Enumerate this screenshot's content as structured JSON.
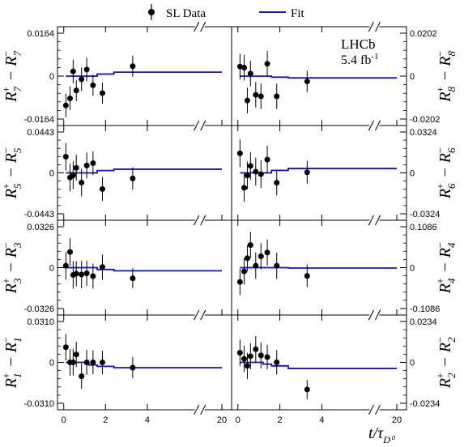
{
  "chart_data": {
    "type": "scatter",
    "legend": {
      "placement": "top",
      "entries": [
        {
          "label": "SL Data",
          "marker": "point-with-errorbar"
        },
        {
          "label": "Fit",
          "marker": "line"
        }
      ]
    },
    "experiment": {
      "name": "LHCb",
      "luminosity": "5.4 fb",
      "luminosity_exp": "-1"
    },
    "xlabel": {
      "main": "t/τ",
      "sub": "D⁰"
    },
    "x_ticks": [
      "0",
      "2",
      "4",
      "20"
    ],
    "x_axis_break": true,
    "x_visible_range": [
      -0.3,
      6.2
    ],
    "colors": {
      "data": "#000000",
      "fit": "#1010dd"
    },
    "panels": [
      {
        "id": "7",
        "column": "left",
        "row": 0,
        "ylabel_main": "R",
        "sup": "+",
        "sub": "7",
        "ylim": [
          -0.0164,
          0.0164
        ],
        "yticks": [
          "0.0164",
          "0",
          "-0.0164"
        ],
        "x": [
          0.1,
          0.3,
          0.45,
          0.6,
          0.85,
          1.1,
          1.4,
          1.85,
          3.3
        ],
        "y": [
          -0.0112,
          -0.0085,
          0.0018,
          -0.0055,
          -0.0012,
          0.0025,
          -0.0035,
          -0.0065,
          0.0038
        ],
        "yerr": [
          0.0045,
          0.0045,
          0.0045,
          0.004,
          0.0045,
          0.0045,
          0.004,
          0.004,
          0.004
        ],
        "fit_x": [
          0.1,
          1.2,
          1.6,
          2.4,
          6.0
        ],
        "fit_y": [
          0.0,
          0.0,
          0.0008,
          0.0015,
          0.0015
        ]
      },
      {
        "id": "8",
        "column": "right",
        "row": 0,
        "ylabel_main": "R",
        "sup": "+",
        "sub": "8",
        "ylim": [
          -0.0202,
          0.0202
        ],
        "yticks": [
          "0.0202",
          "0",
          "-0.0202"
        ],
        "x": [
          0.1,
          0.3,
          0.45,
          0.6,
          0.85,
          1.1,
          1.4,
          1.85,
          3.3
        ],
        "y": [
          0.0045,
          0.004,
          -0.0115,
          0.0012,
          -0.0088,
          -0.0095,
          0.0058,
          -0.0095,
          -0.0025
        ],
        "yerr": [
          0.006,
          0.006,
          0.006,
          0.006,
          0.006,
          0.006,
          0.006,
          0.006,
          0.005
        ],
        "fit_x": [
          0.1,
          1.2,
          1.6,
          2.4,
          6.0
        ],
        "fit_y": [
          0.0,
          0.0,
          -0.0005,
          -0.0008,
          -0.0008
        ]
      },
      {
        "id": "5",
        "column": "left",
        "row": 1,
        "ylabel_main": "R",
        "sup": "+",
        "sub": "5",
        "ylim": [
          -0.0443,
          0.0443
        ],
        "yticks": [
          "0.0443",
          "0",
          "-0.0443"
        ],
        "x": [
          0.1,
          0.3,
          0.45,
          0.6,
          0.85,
          1.1,
          1.4,
          1.85,
          3.3
        ],
        "y": [
          0.0175,
          -0.005,
          -0.0025,
          0.0055,
          -0.0105,
          0.008,
          0.0105,
          -0.0175,
          -0.006
        ],
        "yerr": [
          0.015,
          0.015,
          0.015,
          0.014,
          0.015,
          0.014,
          0.013,
          0.013,
          0.012
        ],
        "fit_x": [
          0.1,
          1.2,
          1.6,
          2.4,
          6.0
        ],
        "fit_y": [
          0.0,
          0.0,
          0.0025,
          0.004,
          0.004
        ]
      },
      {
        "id": "6",
        "column": "right",
        "row": 1,
        "ylabel_main": "R",
        "sup": "+",
        "sub": "6",
        "ylim": [
          -0.0324,
          0.0324
        ],
        "yticks": [
          "0.0324",
          "0",
          "-0.0324"
        ],
        "x": [
          0.1,
          0.3,
          0.45,
          0.6,
          0.85,
          1.1,
          1.4,
          1.85,
          3.3
        ],
        "y": [
          0.0155,
          -0.0118,
          -0.002,
          0.0055,
          0.001,
          -0.001,
          0.0105,
          -0.0078,
          0.0005
        ],
        "yerr": [
          0.011,
          0.011,
          0.011,
          0.011,
          0.011,
          0.011,
          0.011,
          0.01,
          0.009
        ],
        "fit_x": [
          0.1,
          1.2,
          1.6,
          2.4,
          6.0
        ],
        "fit_y": [
          0.0,
          0.0,
          0.002,
          0.0035,
          0.0035
        ]
      },
      {
        "id": "3",
        "column": "left",
        "row": 2,
        "ylabel_main": "R",
        "sup": "+",
        "sub": "3",
        "ylim": [
          -0.0326,
          0.0326
        ],
        "yticks": [
          "0.0326",
          "0",
          "-0.0326"
        ],
        "x": [
          0.1,
          0.3,
          0.45,
          0.6,
          0.85,
          1.1,
          1.4,
          1.85,
          3.3
        ],
        "y": [
          0.0015,
          0.0125,
          -0.0058,
          -0.0048,
          -0.0055,
          -0.0045,
          -0.0068,
          0.0005,
          -0.0085
        ],
        "yerr": [
          0.011,
          0.011,
          0.011,
          0.01,
          0.011,
          0.01,
          0.01,
          0.01,
          0.008
        ],
        "fit_x": [
          0.1,
          1.2,
          1.6,
          2.4,
          6.0
        ],
        "fit_y": [
          0.0,
          0.0,
          -0.0015,
          -0.0025,
          -0.0025
        ]
      },
      {
        "id": "4",
        "column": "right",
        "row": 2,
        "ylabel_main": "R",
        "sup": "+",
        "sub": "4",
        "ylim": [
          -0.1086,
          0.1086
        ],
        "yticks": [
          "0.1086",
          "0",
          "-0.1086"
        ],
        "x": [
          0.1,
          0.3,
          0.45,
          0.6,
          0.85,
          1.1,
          1.4,
          1.85,
          3.3
        ],
        "y": [
          -0.038,
          -0.01,
          0.025,
          0.06,
          0.005,
          0.03,
          0.04,
          0.005,
          -0.022
        ],
        "yerr": [
          0.035,
          0.035,
          0.035,
          0.035,
          0.035,
          0.035,
          0.035,
          0.035,
          0.03
        ],
        "fit_x": [
          0.1,
          1.2,
          1.6,
          2.4,
          6.0
        ],
        "fit_y": [
          0.0,
          0.0,
          0.0,
          -0.001,
          -0.001
        ]
      },
      {
        "id": "1",
        "column": "left",
        "row": 3,
        "ylabel_main": "R",
        "sup": "+",
        "sub": "1",
        "ylim": [
          -0.031,
          0.031
        ],
        "yticks": [
          "0.0310",
          "0",
          "-0.0310"
        ],
        "x": [
          0.1,
          0.3,
          0.45,
          0.6,
          0.85,
          1.1,
          1.4,
          1.85,
          3.3
        ],
        "y": [
          0.0115,
          0.0,
          0.0,
          0.006,
          -0.0105,
          0.0,
          0.0,
          0.0,
          -0.004
        ],
        "yerr": [
          0.01,
          0.01,
          0.01,
          0.0095,
          0.0095,
          0.0095,
          0.009,
          0.009,
          0.008
        ],
        "fit_x": [
          0.1,
          1.2,
          1.6,
          2.4,
          6.0
        ],
        "fit_y": [
          0.0,
          -0.002,
          -0.003,
          -0.004,
          -0.004
        ]
      },
      {
        "id": "2",
        "column": "right",
        "row": 3,
        "ylabel_main": "R",
        "sup": "+",
        "sub": "2",
        "ylim": [
          -0.0234,
          0.0234
        ],
        "yticks": [
          "0.0234",
          "0",
          "-0.0234"
        ],
        "x": [
          0.1,
          0.3,
          0.45,
          0.6,
          0.85,
          1.1,
          1.4,
          1.85,
          3.3
        ],
        "y": [
          0.0055,
          0.002,
          -0.002,
          0.0035,
          0.0075,
          0.004,
          0.003,
          0.0,
          -0.0155
        ],
        "yerr": [
          0.0075,
          0.0075,
          0.0075,
          0.0075,
          0.0075,
          0.0075,
          0.007,
          0.007,
          0.0055
        ],
        "fit_x": [
          0.1,
          1.2,
          1.6,
          2.4,
          6.0
        ],
        "fit_y": [
          0.0,
          -0.001,
          -0.002,
          -0.0035,
          -0.0035
        ]
      }
    ]
  }
}
